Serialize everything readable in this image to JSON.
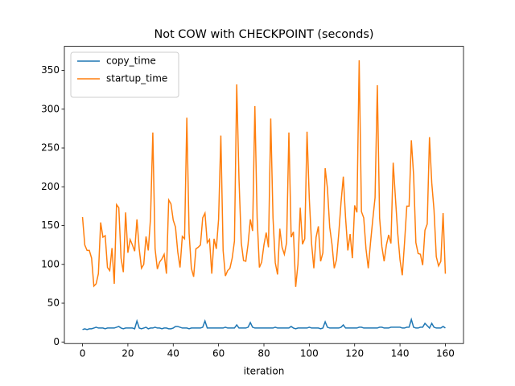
{
  "chart_data": {
    "type": "line",
    "title": "Not COW with CHECKPOINT (seconds)",
    "xlabel": "iteration",
    "x": [
      0,
      1,
      2,
      3,
      4,
      5,
      6,
      7,
      8,
      9,
      10,
      11,
      12,
      13,
      14,
      15,
      16,
      17,
      18,
      19,
      20,
      21,
      22,
      23,
      24,
      25,
      26,
      27,
      28,
      29,
      30,
      31,
      32,
      33,
      34,
      35,
      36,
      37,
      38,
      39,
      40,
      41,
      42,
      43,
      44,
      45,
      46,
      47,
      48,
      49,
      50,
      51,
      52,
      53,
      54,
      55,
      56,
      57,
      58,
      59,
      60,
      61,
      62,
      63,
      64,
      65,
      66,
      67,
      68,
      69,
      70,
      71,
      72,
      73,
      74,
      75,
      76,
      77,
      78,
      79,
      80,
      81,
      82,
      83,
      84,
      85,
      86,
      87,
      88,
      89,
      90,
      91,
      92,
      93,
      94,
      95,
      96,
      97,
      98,
      99,
      100,
      101,
      102,
      103,
      104,
      105,
      106,
      107,
      108,
      109,
      110,
      111,
      112,
      113,
      114,
      115,
      116,
      117,
      118,
      119,
      120,
      121,
      122,
      123,
      124,
      125,
      126,
      127,
      128,
      129,
      130,
      131,
      132,
      133,
      134,
      135,
      136,
      137,
      138,
      139,
      140,
      141,
      142,
      143,
      144,
      145,
      146,
      147,
      148,
      149,
      150,
      151,
      152,
      153,
      154,
      155,
      156,
      157,
      158,
      159,
      160
    ],
    "series": [
      {
        "name": "copy_time",
        "color": "#1f77b4",
        "values": [
          16,
          17,
          16,
          17,
          17,
          18,
          19,
          18,
          18,
          18,
          17,
          18,
          18,
          18,
          18,
          19,
          20,
          18,
          17,
          18,
          18,
          18,
          18,
          17,
          27,
          18,
          17,
          18,
          19,
          17,
          18,
          18,
          19,
          18,
          18,
          17,
          18,
          18,
          17,
          17,
          18,
          20,
          20,
          19,
          18,
          18,
          18,
          17,
          18,
          18,
          18,
          18,
          18,
          19,
          27,
          18,
          18,
          18,
          18,
          18,
          18,
          18,
          18,
          19,
          18,
          18,
          18,
          18,
          22,
          18,
          18,
          18,
          18,
          19,
          25,
          19,
          18,
          18,
          18,
          18,
          18,
          18,
          18,
          18,
          18,
          19,
          18,
          18,
          18,
          18,
          18,
          18,
          20,
          18,
          17,
          18,
          18,
          18,
          18,
          18,
          19,
          18,
          18,
          18,
          18,
          17,
          18,
          26,
          19,
          18,
          18,
          18,
          18,
          18,
          19,
          22,
          18,
          18,
          18,
          18,
          18,
          18,
          19,
          19,
          18,
          18,
          18,
          18,
          18,
          18,
          18,
          19,
          19,
          18,
          18,
          18,
          19,
          19,
          19,
          19,
          19,
          18,
          18,
          19,
          19,
          29,
          19,
          18,
          18,
          19,
          19,
          24,
          21,
          18,
          24,
          19,
          18,
          18,
          18,
          20,
          18
        ]
      },
      {
        "name": "startup_time",
        "color": "#ff7f0e",
        "values": [
          161,
          125,
          118,
          118,
          108,
          72,
          75,
          88,
          154,
          135,
          137,
          96,
          92,
          121,
          75,
          177,
          173,
          108,
          90,
          167,
          115,
          132,
          125,
          117,
          158,
          120,
          95,
          100,
          136,
          118,
          160,
          270,
          120,
          94,
          103,
          107,
          113,
          88,
          183,
          178,
          157,
          148,
          116,
          96,
          136,
          133,
          289,
          140,
          95,
          84,
          120,
          122,
          125,
          160,
          166,
          128,
          132,
          88,
          133,
          120,
          158,
          266,
          118,
          85,
          92,
          95,
          108,
          130,
          332,
          210,
          128,
          105,
          104,
          126,
          158,
          143,
          304,
          160,
          96,
          103,
          125,
          141,
          122,
          288,
          160,
          102,
          87,
          146,
          122,
          113,
          128,
          270,
          135,
          142,
          71,
          100,
          173,
          126,
          133,
          271,
          185,
          127,
          95,
          135,
          149,
          104,
          115,
          224,
          198,
          148,
          126,
          95,
          106,
          140,
          180,
          213,
          160,
          118,
          139,
          108,
          176,
          167,
          363,
          168,
          160,
          120,
          95,
          128,
          158,
          186,
          331,
          160,
          123,
          104,
          125,
          138,
          127,
          231,
          185,
          140,
          106,
          86,
          128,
          175,
          175,
          260,
          215,
          128,
          114,
          113,
          99,
          144,
          152,
          264,
          205,
          170,
          110,
          98,
          104,
          166,
          88
        ]
      }
    ],
    "xlim": [
      -8,
      168
    ],
    "xticks": [
      0,
      20,
      40,
      60,
      80,
      100,
      120,
      140,
      160
    ],
    "ylim": [
      -2,
      381
    ],
    "yticks": [
      0,
      50,
      100,
      150,
      200,
      250,
      300,
      350
    ],
    "legend": "upper left"
  }
}
